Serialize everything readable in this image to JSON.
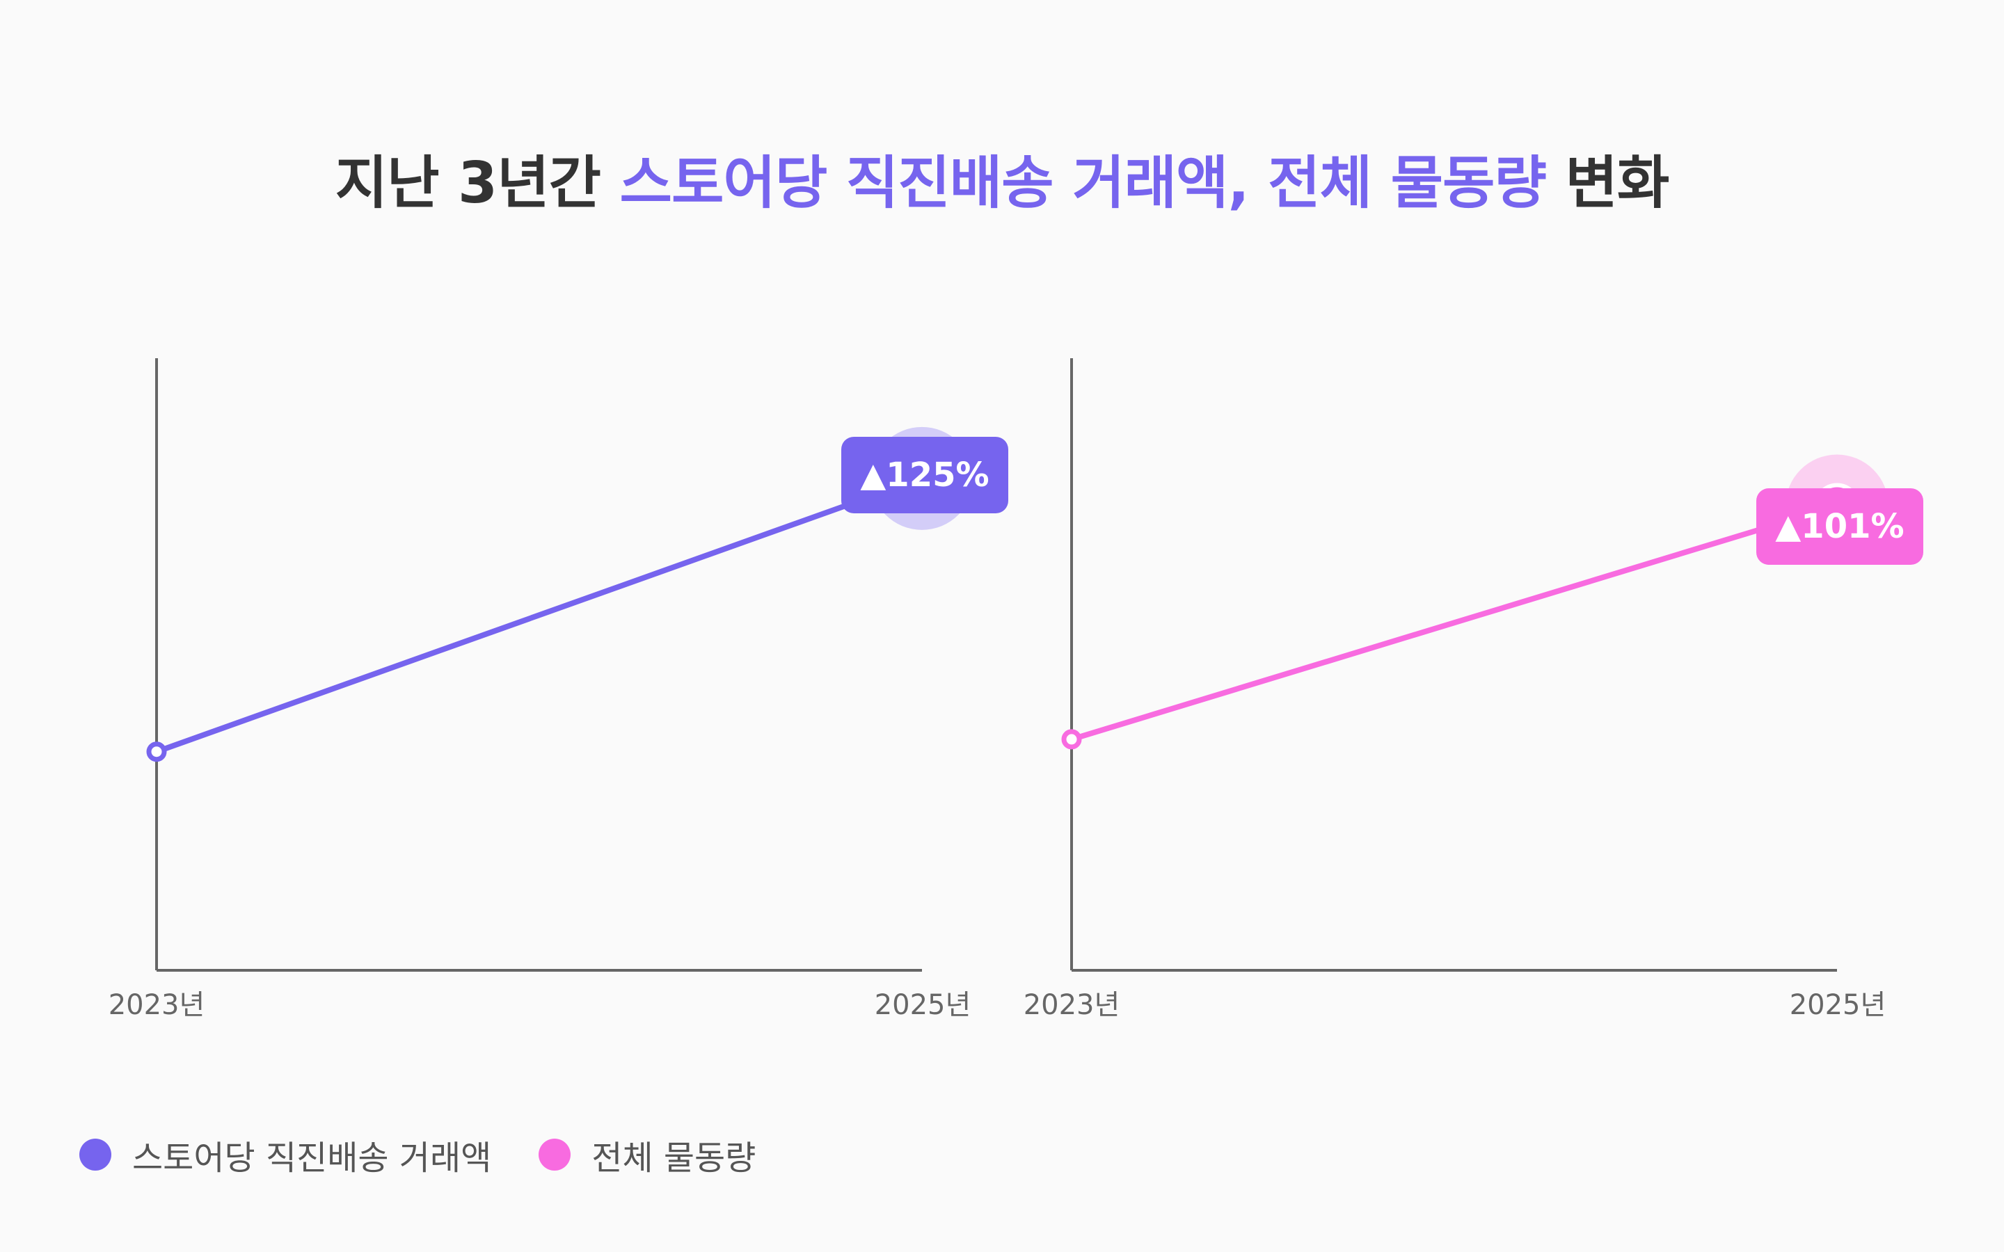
{
  "title": {
    "prefix": "지난 3년간 ",
    "highlight": "스토어당 직진배송 거래액, 전체 물동량",
    "suffix": " 변화"
  },
  "colors": {
    "series1": "#7664ee",
    "series1_halo": "#d3cdf8",
    "series2": "#f86be0",
    "series2_halo": "#fbd0f1",
    "axis": "#666666",
    "tick_text": "#666666",
    "title_text": "#333333"
  },
  "chart_data": [
    {
      "type": "line",
      "categories": [
        "2023년",
        "2025년"
      ],
      "series": [
        {
          "name": "스토어당 직진배송 거래액",
          "values": [
            100,
            225
          ]
        }
      ],
      "annotation": "▲125%",
      "ylim": [
        0,
        280
      ],
      "grid": false
    },
    {
      "type": "line",
      "categories": [
        "2023년",
        "2025년"
      ],
      "series": [
        {
          "name": "전체 물동량",
          "values": [
            100,
            201
          ]
        }
      ],
      "annotation": "▲101%",
      "ylim": [
        0,
        265
      ],
      "grid": false
    }
  ],
  "legend": {
    "items": [
      {
        "label": "스토어당 직진배송 거래액",
        "color": "#7664ee"
      },
      {
        "label": "전체 물동량",
        "color": "#f86be0"
      }
    ]
  }
}
